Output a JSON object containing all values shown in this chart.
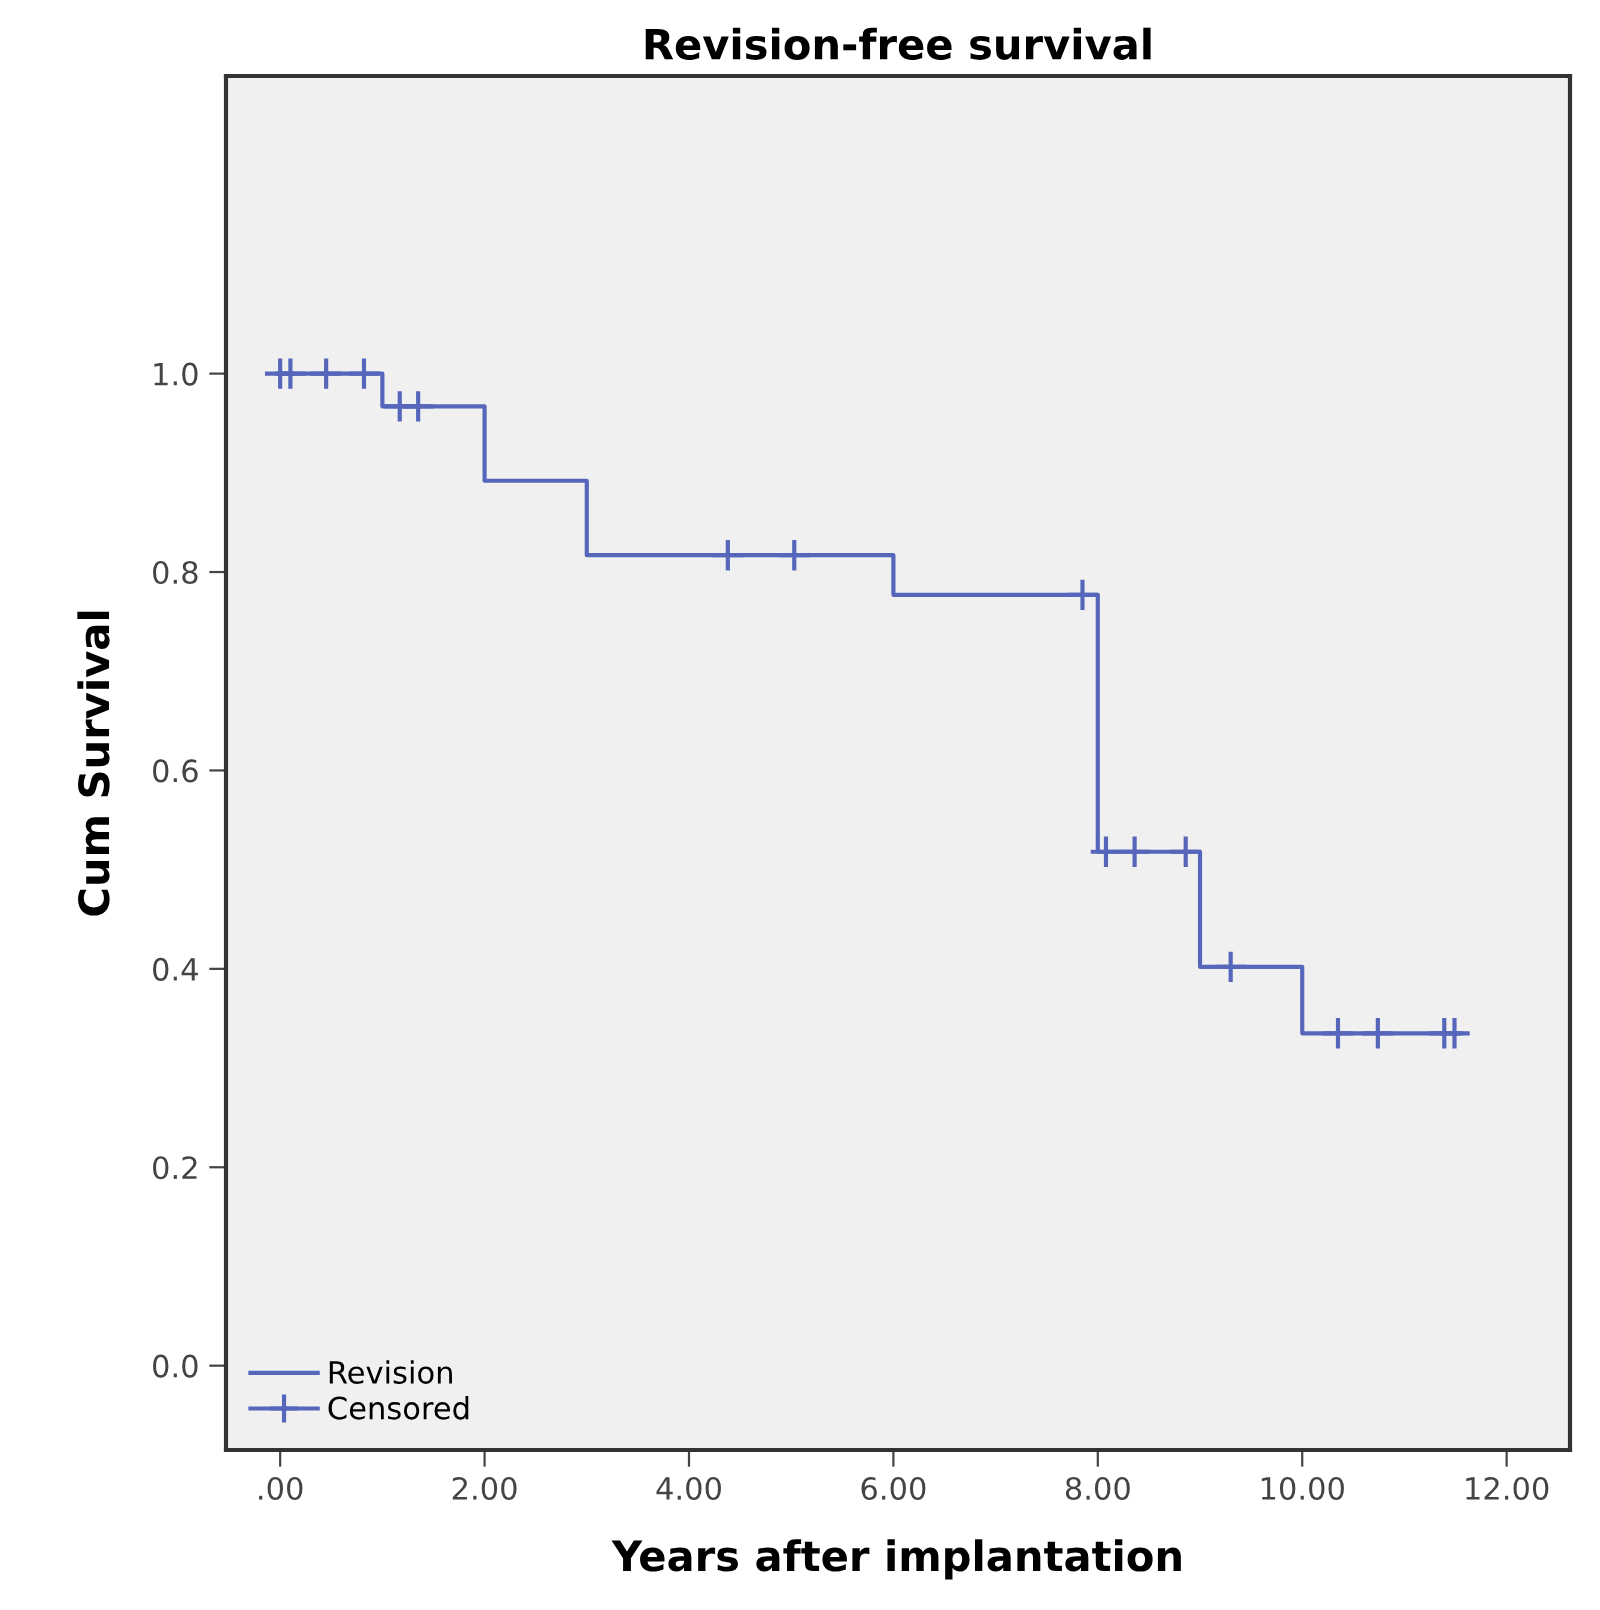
{
  "chart_data": {
    "type": "step",
    "title": "Revision-free survival",
    "xlabel": "Years after implantation",
    "ylabel": "Cum Survival",
    "xlim": [
      -0.53,
      12.62
    ],
    "ylim": [
      -0.085,
      1.3
    ],
    "xticks": [
      {
        "value": 0,
        "label": ".00"
      },
      {
        "value": 2,
        "label": "2.00"
      },
      {
        "value": 4,
        "label": "4.00"
      },
      {
        "value": 6,
        "label": "6.00"
      },
      {
        "value": 8,
        "label": "8.00"
      },
      {
        "value": 10,
        "label": "10.00"
      },
      {
        "value": 12,
        "label": "12.00"
      }
    ],
    "yticks": [
      {
        "value": 0,
        "label": "0.0"
      },
      {
        "value": 0.2,
        "label": "0.2"
      },
      {
        "value": 0.4,
        "label": "0.4"
      },
      {
        "value": 0.6,
        "label": "0.6"
      },
      {
        "value": 0.8,
        "label": "0.8"
      },
      {
        "value": 1,
        "label": "1.0"
      }
    ],
    "grid": false,
    "legend": "bottom left",
    "series": [
      {
        "name": "Revision",
        "color": "#5566bb",
        "x": [
          0,
          1.0,
          2.0,
          3.0,
          6.0,
          8.0,
          9.0,
          10.0,
          11.55
        ],
        "values": [
          1.0,
          0.967,
          0.892,
          0.817,
          0.777,
          0.518,
          0.402,
          0.335,
          0.335
        ]
      },
      {
        "name": "Censored",
        "type": "scatter",
        "marker": "cross",
        "color": "#5566bb",
        "x": [
          0.0,
          0.1,
          0.45,
          0.82,
          1.17,
          1.35,
          4.38,
          5.03,
          7.85,
          8.08,
          8.36,
          8.86,
          9.3,
          10.35,
          10.74,
          11.39,
          11.49
        ],
        "values": [
          1.0,
          1.0,
          1.0,
          1.0,
          0.967,
          0.967,
          0.817,
          0.817,
          0.777,
          0.518,
          0.518,
          0.518,
          0.402,
          0.335,
          0.335,
          0.335,
          0.335
        ]
      }
    ]
  }
}
